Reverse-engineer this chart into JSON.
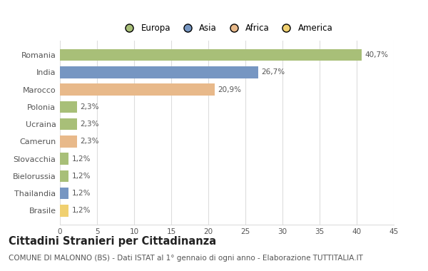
{
  "categories": [
    "Romania",
    "India",
    "Marocco",
    "Polonia",
    "Ucraina",
    "Camerun",
    "Slovacchia",
    "Bielorussia",
    "Thailandia",
    "Brasile"
  ],
  "values": [
    40.7,
    26.7,
    20.9,
    2.3,
    2.3,
    2.3,
    1.2,
    1.2,
    1.2,
    1.2
  ],
  "labels": [
    "40,7%",
    "26,7%",
    "20,9%",
    "2,3%",
    "2,3%",
    "2,3%",
    "1,2%",
    "1,2%",
    "1,2%",
    "1,2%"
  ],
  "colors": [
    "#a8bf78",
    "#7696c2",
    "#e8b98a",
    "#a8bf78",
    "#a8bf78",
    "#e8b98a",
    "#a8bf78",
    "#a8bf78",
    "#7696c2",
    "#f0d070"
  ],
  "legend_labels": [
    "Europa",
    "Asia",
    "Africa",
    "America"
  ],
  "legend_colors": [
    "#a8bf78",
    "#7696c2",
    "#e8b98a",
    "#f0d070"
  ],
  "title": "Cittadini Stranieri per Cittadinanza",
  "subtitle": "COMUNE DI MALONNO (BS) - Dati ISTAT al 1° gennaio di ogni anno - Elaborazione TUTTITALIA.IT",
  "xlim": [
    0,
    45
  ],
  "xticks": [
    0,
    5,
    10,
    15,
    20,
    25,
    30,
    35,
    40,
    45
  ],
  "background_color": "#ffffff",
  "grid_color": "#dddddd",
  "bar_height": 0.68,
  "title_fontsize": 10.5,
  "subtitle_fontsize": 7.5,
  "label_fontsize": 7.5,
  "ytick_fontsize": 8,
  "xtick_fontsize": 7.5
}
